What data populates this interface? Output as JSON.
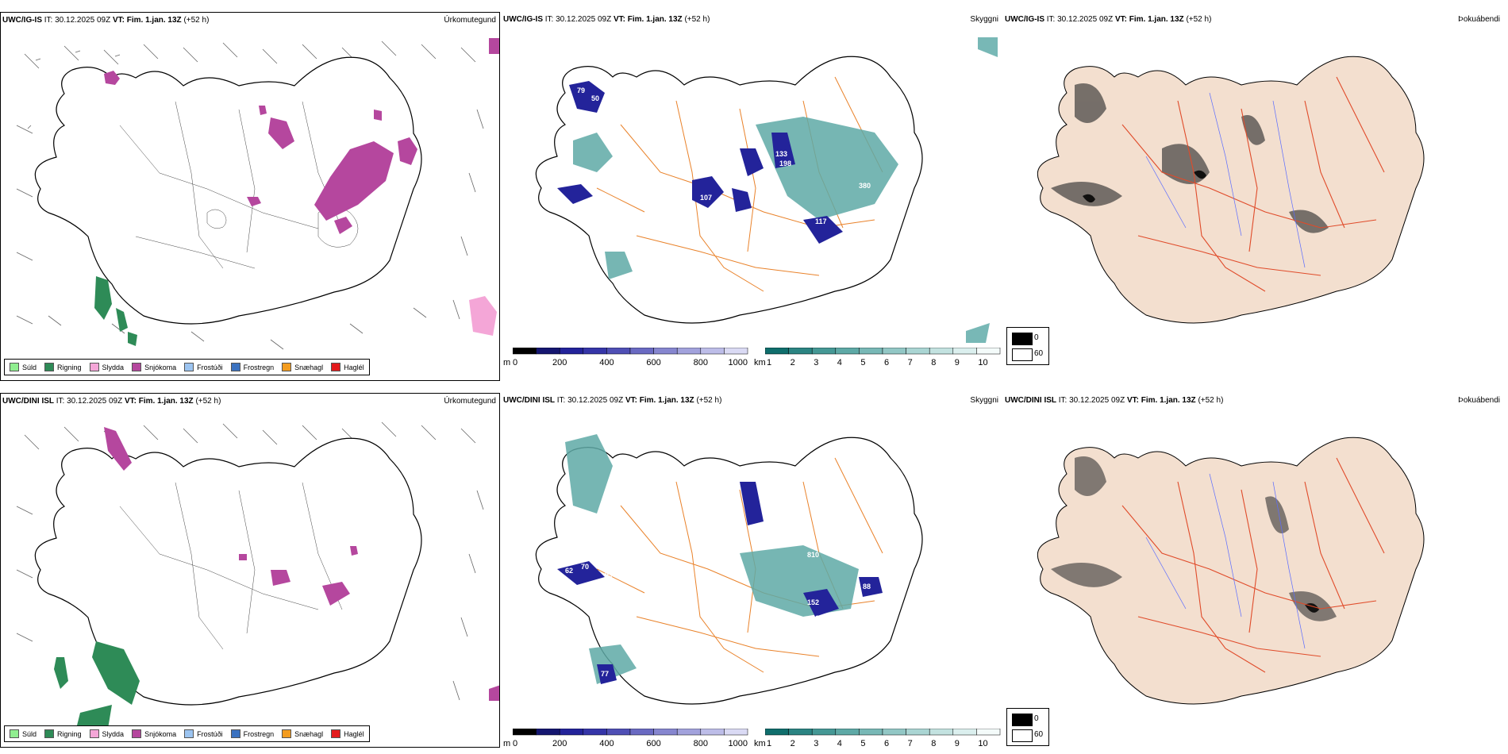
{
  "rows": [
    {
      "model": "UWC/IG-IS",
      "it": "IT: 30.12.2025 09Z",
      "vt_label": "VT: Fim. 1.jan. 13Z",
      "lead": "(+52 h)"
    },
    {
      "model": "UWC/DINI ISL",
      "it": "IT: 30.12.2025 09Z",
      "vt_label": "VT: Fim. 1.jan. 13Z",
      "lead": "(+52 h)"
    }
  ],
  "panel_titles": {
    "precip": "Úrkomutegund",
    "visibility": "Skyggni",
    "fog": "Þokuábendi"
  },
  "precip_legend": [
    {
      "label": "Súld",
      "color": "#90ee90"
    },
    {
      "label": "Rigning",
      "color": "#2e8b57"
    },
    {
      "label": "Slydda",
      "color": "#f4a6d7"
    },
    {
      "label": "Snjókoma",
      "color": "#b5479e"
    },
    {
      "label": "Frostúði",
      "color": "#9cc4f0"
    },
    {
      "label": "Frostregn",
      "color": "#3b72c0"
    },
    {
      "label": "Snæhagl",
      "color": "#f39c1f"
    },
    {
      "label": "Haglél",
      "color": "#e31a1c"
    }
  ],
  "cloud_base_scale": {
    "unit": "m",
    "ticks": [
      "0",
      "200",
      "400",
      "600",
      "800",
      "1000"
    ],
    "colors": [
      "#000000",
      "#151670",
      "#23239a",
      "#3535a8",
      "#4f4fb5",
      "#6a6ac2",
      "#8686cf",
      "#a2a2dc",
      "#bdbde8",
      "#dadaf4"
    ]
  },
  "visibility_scale": {
    "unit": "km",
    "ticks": [
      "1",
      "2",
      "3",
      "4",
      "5",
      "6",
      "7",
      "8",
      "9",
      "10"
    ],
    "colors": [
      "#0f6e6c",
      "#2b8482",
      "#459895",
      "#5ea9a6",
      "#78b8b6",
      "#92c7c5",
      "#aad5d3",
      "#c3e2e0",
      "#dbefee",
      "#f4fbfa"
    ]
  },
  "fog_legend": {
    "top": "0",
    "bottom": "60"
  },
  "map_colors": {
    "coast": "#000000",
    "roads": "#e9822a",
    "land_fog": "#f3dfcf",
    "roads_fog": "#e04b2a",
    "rivers": "#5b6cff",
    "snow": "#b5479e",
    "rain": "#2e8b57",
    "sleet": "#f4a6d7"
  }
}
